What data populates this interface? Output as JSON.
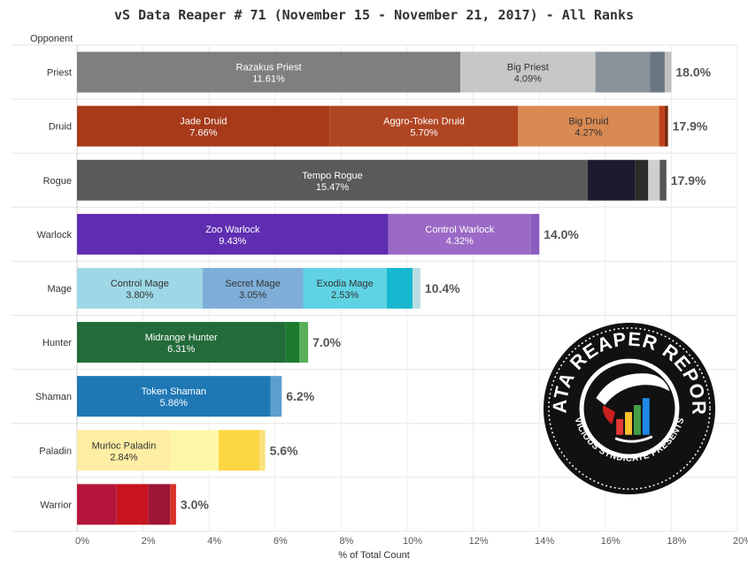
{
  "title": "vS Data Reaper # 71 (November 15 - November 21, 2017) - All Ranks",
  "row_header": "Opponent",
  "logo": {
    "name": "data-reaper-report-logo",
    "top_text": "DATA REAPER REPORT",
    "bottom_text": "VICIOUS SYNDICATE PRESENTS"
  },
  "chart_data": {
    "type": "bar",
    "orientation": "horizontal",
    "stacked": true,
    "xlabel": "% of Total Count",
    "xlim": [
      0,
      20
    ],
    "x_ticks": [
      "0%",
      "2%",
      "4%",
      "6%",
      "8%",
      "10%",
      "12%",
      "14%",
      "16%",
      "18%",
      "20%"
    ],
    "grid": true,
    "categories": [
      "Priest",
      "Druid",
      "Rogue",
      "Warlock",
      "Mage",
      "Hunter",
      "Shaman",
      "Paladin",
      "Warrior"
    ],
    "totals": [
      "18.0%",
      "17.9%",
      "17.9%",
      "14.0%",
      "10.4%",
      "7.0%",
      "6.2%",
      "5.6%",
      "3.0%"
    ],
    "bars": [
      {
        "category": "Priest",
        "segments": [
          {
            "label": "Razakus Priest",
            "value_label": "11.61%",
            "value": 11.61,
            "color": "#7f7f7f",
            "text_color": "#ffffff"
          },
          {
            "label": "Big Priest",
            "value_label": "4.09%",
            "value": 4.09,
            "color": "#c7c7c7",
            "text_color": "#333333"
          },
          {
            "label": "",
            "value_label": "",
            "value": 1.65,
            "color": "#8a939b",
            "text_color": "#ffffff"
          },
          {
            "label": "",
            "value_label": "",
            "value": 0.45,
            "color": "#6a7782",
            "text_color": "#ffffff"
          },
          {
            "label": "",
            "value_label": "",
            "value": 0.2,
            "color": "#c0c0c0",
            "text_color": "#ffffff"
          }
        ]
      },
      {
        "category": "Druid",
        "segments": [
          {
            "label": "Jade Druid",
            "value_label": "7.66%",
            "value": 7.66,
            "color": "#a63a19",
            "text_color": "#ffffff"
          },
          {
            "label": "Aggro-Token Druid",
            "value_label": "5.70%",
            "value": 5.7,
            "color": "#b04522",
            "text_color": "#ffffff"
          },
          {
            "label": "Big Druid",
            "value_label": "4.27%",
            "value": 4.27,
            "color": "#d98a52",
            "text_color": "#333333"
          },
          {
            "label": "",
            "value_label": "",
            "value": 0.17,
            "color": "#c0411a",
            "text_color": "#ffffff"
          },
          {
            "label": "",
            "value_label": "",
            "value": 0.1,
            "color": "#7a2a10",
            "text_color": "#ffffff"
          }
        ]
      },
      {
        "category": "Rogue",
        "segments": [
          {
            "label": "Tempo Rogue",
            "value_label": "15.47%",
            "value": 15.47,
            "color": "#5a5a5a",
            "text_color": "#ffffff"
          },
          {
            "label": "",
            "value_label": "",
            "value": 1.43,
            "color": "#1c1a2e",
            "text_color": "#ffffff"
          },
          {
            "label": "",
            "value_label": "",
            "value": 0.4,
            "color": "#2b2b2b",
            "text_color": "#ffffff"
          },
          {
            "label": "",
            "value_label": "",
            "value": 0.35,
            "color": "#cfcfcf",
            "text_color": "#ffffff"
          },
          {
            "label": "",
            "value_label": "",
            "value": 0.2,
            "color": "#555555",
            "text_color": "#ffffff"
          }
        ]
      },
      {
        "category": "Warlock",
        "segments": [
          {
            "label": "Zoo Warlock",
            "value_label": "9.43%",
            "value": 9.43,
            "color": "#5e2db0",
            "text_color": "#ffffff"
          },
          {
            "label": "Control Warlock",
            "value_label": "4.32%",
            "value": 4.32,
            "color": "#9b6ac6",
            "text_color": "#ffffff"
          },
          {
            "label": "",
            "value_label": "",
            "value": 0.25,
            "color": "#8a5cc0",
            "text_color": "#ffffff"
          }
        ]
      },
      {
        "category": "Mage",
        "segments": [
          {
            "label": "Control Mage",
            "value_label": "3.80%",
            "value": 3.8,
            "color": "#9ed8e6",
            "text_color": "#333333"
          },
          {
            "label": "Secret Mage",
            "value_label": "3.05%",
            "value": 3.05,
            "color": "#7eaed8",
            "text_color": "#333333"
          },
          {
            "label": "Exodia Mage",
            "value_label": "2.53%",
            "value": 2.53,
            "color": "#5fd3e4",
            "text_color": "#333333"
          },
          {
            "label": "",
            "value_label": "",
            "value": 0.78,
            "color": "#17b8cf",
            "text_color": "#ffffff"
          },
          {
            "label": "",
            "value_label": "",
            "value": 0.24,
            "color": "#b8dde3",
            "text_color": "#ffffff"
          }
        ]
      },
      {
        "category": "Hunter",
        "segments": [
          {
            "label": "Midrange Hunter",
            "value_label": "6.31%",
            "value": 6.31,
            "color": "#236b3a",
            "text_color": "#ffffff"
          },
          {
            "label": "",
            "value_label": "",
            "value": 0.42,
            "color": "#1b7a2e",
            "text_color": "#ffffff"
          },
          {
            "label": "",
            "value_label": "",
            "value": 0.27,
            "color": "#5aaf5a",
            "text_color": "#ffffff"
          }
        ]
      },
      {
        "category": "Shaman",
        "segments": [
          {
            "label": "Token Shaman",
            "value_label": "5.86%",
            "value": 5.86,
            "color": "#1f78b4",
            "text_color": "#ffffff"
          },
          {
            "label": "",
            "value_label": "",
            "value": 0.34,
            "color": "#5b9fd0",
            "text_color": "#ffffff"
          }
        ]
      },
      {
        "category": "Paladin",
        "segments": [
          {
            "label": "Murloc Paladin",
            "value_label": "2.84%",
            "value": 2.84,
            "color": "#fdeea4",
            "text_color": "#333333"
          },
          {
            "label": "",
            "value_label": "",
            "value": 1.45,
            "color": "#fff7a8",
            "text_color": "#333333"
          },
          {
            "label": "",
            "value_label": "",
            "value": 1.24,
            "color": "#fdd644",
            "text_color": "#333333"
          },
          {
            "label": "",
            "value_label": "",
            "value": 0.17,
            "color": "#fbe27a",
            "text_color": "#333333"
          }
        ]
      },
      {
        "category": "Warrior",
        "segments": [
          {
            "label": "",
            "value_label": "",
            "value": 1.2,
            "color": "#b5153a",
            "text_color": "#ffffff"
          },
          {
            "label": "",
            "value_label": "",
            "value": 0.95,
            "color": "#c8141e",
            "text_color": "#ffffff"
          },
          {
            "label": "",
            "value_label": "",
            "value": 0.67,
            "color": "#9e1535",
            "text_color": "#ffffff"
          },
          {
            "label": "",
            "value_label": "",
            "value": 0.18,
            "color": "#d8302a",
            "text_color": "#ffffff"
          }
        ]
      }
    ]
  }
}
